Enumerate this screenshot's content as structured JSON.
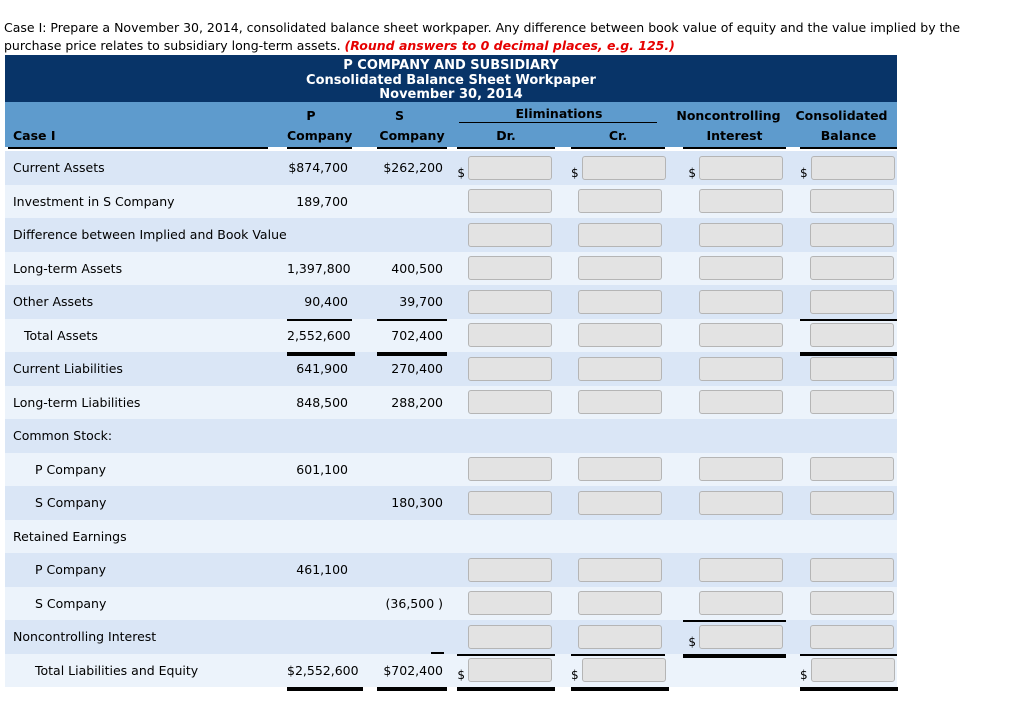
{
  "instruction": {
    "text": "Case I: Prepare a November 30, 2014, consolidated balance sheet workpaper. Any difference between book value of equity and the value implied by the purchase price relates to subsidiary long-term assets. ",
    "emphasis": "(Round answers to 0 decimal places, e.g. 125.)"
  },
  "title": {
    "line1": "P COMPANY AND SUBSIDIARY",
    "line2": "Consolidated Balance Sheet Workpaper",
    "line3": "November 30, 2014"
  },
  "header": {
    "case_label": "Case I",
    "p_top": "P",
    "p_bottom": "Company",
    "s_top": "S",
    "s_bottom": "Company",
    "eliminations": "Eliminations",
    "dr": "Dr.",
    "cr": "Cr.",
    "nci_top": "Noncontrolling",
    "nci_bottom": "Interest",
    "cons_top": "Consolidated",
    "cons_bottom": "Balance"
  },
  "currency_symbol": "$",
  "colors": {
    "title_band": "#083468",
    "header_band": "#5E9BCD",
    "row_stripe_dark": "#DAE6F6",
    "row_stripe_light": "#ECF3FB",
    "input_fill": "#e3e3e3",
    "input_border": "#b5b5b5",
    "emphasis_red": "#e60000",
    "rule_black": "#000000"
  },
  "rows": [
    {
      "key": "current-assets",
      "label": "Current Assets",
      "indent": 0,
      "p": "$874,700",
      "s": "$262,200",
      "pLine": "",
      "sLine": "",
      "sTick": false,
      "dr": {
        "box": true,
        "dollar": true,
        "line": ""
      },
      "cr": {
        "box": true,
        "dollar": true,
        "line": ""
      },
      "nci": {
        "box": true,
        "dollar": true,
        "line": ""
      },
      "cons": {
        "box": true,
        "dollar": true,
        "line": ""
      }
    },
    {
      "key": "investment-in-s-company",
      "label": "Investment in S Company",
      "indent": 0,
      "p": "189,700",
      "s": "",
      "pLine": "",
      "sLine": "",
      "sTick": false,
      "dr": {
        "box": true
      },
      "cr": {
        "box": true
      },
      "nci": {
        "box": true
      },
      "cons": {
        "box": true
      }
    },
    {
      "key": "difference-between-implied-and-book-value",
      "label": "Difference between Implied and Book Value",
      "indent": 0,
      "p": "",
      "s": "",
      "pLine": "",
      "sLine": "",
      "sTick": false,
      "dr": {
        "box": true
      },
      "cr": {
        "box": true
      },
      "nci": {
        "box": true
      },
      "cons": {
        "box": true
      }
    },
    {
      "key": "long-term-assets",
      "label": "Long-term Assets",
      "indent": 0,
      "p": "1,397,800",
      "s": "400,500",
      "pLine": "",
      "sLine": "",
      "sTick": false,
      "dr": {
        "box": true
      },
      "cr": {
        "box": true
      },
      "nci": {
        "box": true
      },
      "cons": {
        "box": true
      }
    },
    {
      "key": "other-assets",
      "label": "Other Assets",
      "indent": 0,
      "p": "90,400",
      "s": "39,700",
      "pLine": "single",
      "sLine": "single",
      "sTick": false,
      "dr": {
        "box": true
      },
      "cr": {
        "box": true
      },
      "nci": {
        "box": true
      },
      "cons": {
        "box": true,
        "line": "single"
      }
    },
    {
      "key": "total-assets",
      "label": "Total Assets",
      "indent": 1,
      "p": "2,552,600",
      "s": "702,400",
      "pLine": "double",
      "sLine": "double",
      "sTick": false,
      "dr": {
        "box": true
      },
      "cr": {
        "box": true
      },
      "nci": {
        "box": true
      },
      "cons": {
        "box": true,
        "line": "double"
      }
    },
    {
      "key": "current-liabilities",
      "label": "Current Liabilities",
      "indent": 0,
      "p": "641,900",
      "s": "270,400",
      "pLine": "",
      "sLine": "",
      "sTick": false,
      "dr": {
        "box": true
      },
      "cr": {
        "box": true
      },
      "nci": {
        "box": true
      },
      "cons": {
        "box": true
      }
    },
    {
      "key": "long-term-liabilities",
      "label": "Long-term Liabilities",
      "indent": 0,
      "p": "848,500",
      "s": "288,200",
      "pLine": "",
      "sLine": "",
      "sTick": false,
      "dr": {
        "box": true
      },
      "cr": {
        "box": true
      },
      "nci": {
        "box": true
      },
      "cons": {
        "box": true
      }
    },
    {
      "key": "common-stock",
      "label": "Common Stock:",
      "indent": 0,
      "p": "",
      "s": "",
      "pLine": "",
      "sLine": "",
      "sTick": false,
      "dr": {},
      "cr": {},
      "nci": {},
      "cons": {}
    },
    {
      "key": "common-stock-p-company",
      "label": "P Company",
      "indent": 2,
      "p": "601,100",
      "s": "",
      "pLine": "",
      "sLine": "",
      "sTick": false,
      "dr": {
        "box": true
      },
      "cr": {
        "box": true
      },
      "nci": {
        "box": true
      },
      "cons": {
        "box": true
      }
    },
    {
      "key": "common-stock-s-company",
      "label": "S Company",
      "indent": 2,
      "p": "",
      "s": "180,300",
      "pLine": "",
      "sLine": "",
      "sTick": false,
      "dr": {
        "box": true
      },
      "cr": {
        "box": true
      },
      "nci": {
        "box": true
      },
      "cons": {
        "box": true
      }
    },
    {
      "key": "retained-earnings",
      "label": "Retained Earnings",
      "indent": 0,
      "p": "",
      "s": "",
      "pLine": "",
      "sLine": "",
      "sTick": false,
      "dr": {},
      "cr": {},
      "nci": {},
      "cons": {}
    },
    {
      "key": "retained-earnings-p-company",
      "label": "P Company",
      "indent": 2,
      "p": "461,100",
      "s": "",
      "pLine": "",
      "sLine": "",
      "sTick": false,
      "dr": {
        "box": true
      },
      "cr": {
        "box": true
      },
      "nci": {
        "box": true
      },
      "cons": {
        "box": true
      }
    },
    {
      "key": "retained-earnings-s-company",
      "label": "S Company",
      "indent": 2,
      "p": "",
      "s": "(36,500 )",
      "pLine": "",
      "sLine": "",
      "sTick": false,
      "dr": {
        "box": true
      },
      "cr": {
        "box": true
      },
      "nci": {
        "box": true,
        "line": "single"
      },
      "cons": {
        "box": true
      }
    },
    {
      "key": "noncontrolling-interest",
      "label": "Noncontrolling Interest",
      "indent": 0,
      "p": "",
      "s": "",
      "pLine": "",
      "sLine": "",
      "sTick": true,
      "dr": {
        "box": true,
        "line": "single"
      },
      "cr": {
        "box": true,
        "line": "single"
      },
      "nci": {
        "box": true,
        "dollar": true,
        "line": "double"
      },
      "cons": {
        "box": true,
        "line": "single"
      }
    },
    {
      "key": "total-liabilities-and-equity",
      "label": "Total Liabilities and Equity",
      "indent": 2,
      "p": "$2,552,600",
      "s": "$702,400",
      "pLine": "double",
      "sLine": "double",
      "sTick": false,
      "dr": {
        "box": true,
        "dollar": true,
        "line": "double"
      },
      "cr": {
        "box": true,
        "dollar": true,
        "line": "double"
      },
      "nci": {},
      "cons": {
        "box": true,
        "dollar": true,
        "line": "double"
      }
    }
  ]
}
